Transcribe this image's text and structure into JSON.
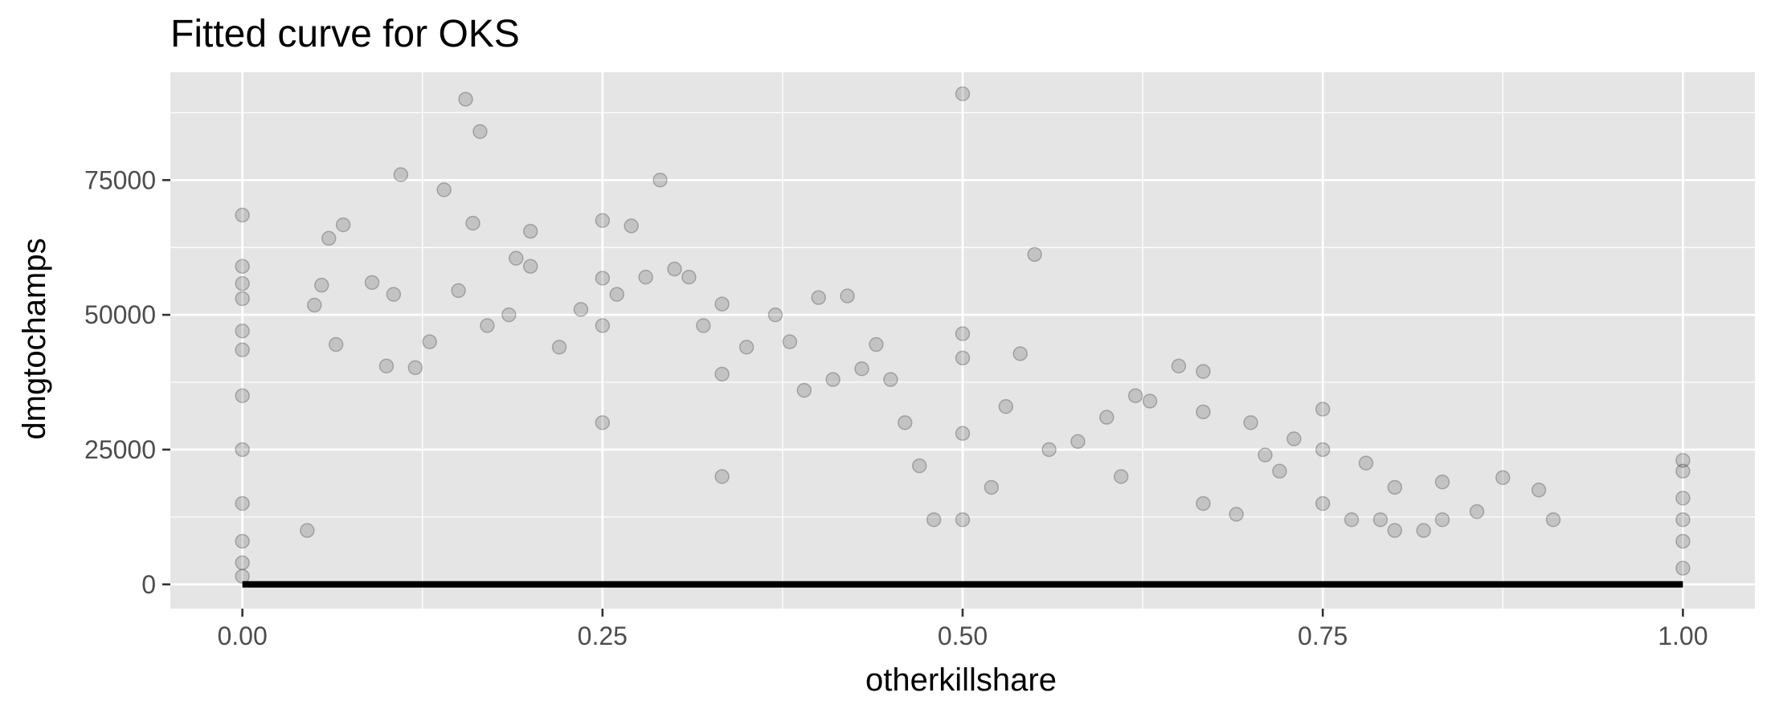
{
  "chart_data": {
    "type": "scatter",
    "title": "Fitted curve for OKS",
    "xlabel": "otherkillshare",
    "ylabel": "dmgtochamps",
    "xlim": [
      -0.05,
      1.05
    ],
    "ylim": [
      -4500,
      95000
    ],
    "xticks": [
      0.0,
      0.25,
      0.5,
      0.75,
      1.0
    ],
    "xtick_labels": [
      "0.00",
      "0.25",
      "0.50",
      "0.75",
      "1.00"
    ],
    "yticks": [
      0,
      25000,
      50000,
      75000
    ],
    "ytick_labels": [
      "0",
      "25000",
      "50000",
      "75000"
    ],
    "grid": true,
    "legend": "none",
    "colors": {
      "panel": "#e5e5e5",
      "grid": "#ffffff",
      "point": "#000000",
      "fitted_line": "#000000"
    },
    "point_alpha": 0.15,
    "fitted_line": {
      "x": [
        0.0,
        1.0
      ],
      "y": [
        0,
        0
      ]
    },
    "series": [
      {
        "x": [
          0.0,
          0.0,
          0.0,
          0.0,
          0.0,
          0.0,
          0.0,
          0.0,
          0.0,
          0.0,
          0.0,
          0.0,
          0.045,
          0.05,
          0.055,
          0.06,
          0.065,
          0.07,
          0.09,
          0.1,
          0.105,
          0.11,
          0.12,
          0.13,
          0.14,
          0.15,
          0.155,
          0.16,
          0.165,
          0.17,
          0.185,
          0.19,
          0.2,
          0.2,
          0.22,
          0.235,
          0.25,
          0.25,
          0.25,
          0.25,
          0.26,
          0.27,
          0.28,
          0.29,
          0.3,
          0.31,
          0.32,
          0.333,
          0.333,
          0.333,
          0.35,
          0.37,
          0.38,
          0.39,
          0.4,
          0.41,
          0.42,
          0.43,
          0.44,
          0.45,
          0.46,
          0.47,
          0.48,
          0.5,
          0.5,
          0.5,
          0.5,
          0.5,
          0.52,
          0.53,
          0.54,
          0.55,
          0.56,
          0.58,
          0.6,
          0.61,
          0.62,
          0.63,
          0.65,
          0.667,
          0.667,
          0.667,
          0.69,
          0.7,
          0.71,
          0.72,
          0.73,
          0.75,
          0.75,
          0.75,
          0.77,
          0.78,
          0.79,
          0.8,
          0.8,
          0.82,
          0.833,
          0.833,
          0.857,
          0.875,
          0.9,
          0.91,
          1.0,
          1.0,
          1.0,
          1.0,
          1.0,
          1.0
        ],
        "y": [
          68500,
          59000,
          55800,
          53000,
          47000,
          43500,
          35000,
          25000,
          15000,
          8000,
          4000,
          1500,
          10000,
          51800,
          55500,
          64200,
          44500,
          66700,
          56000,
          40500,
          53800,
          76000,
          40200,
          45000,
          73200,
          54500,
          90000,
          67000,
          84000,
          48000,
          50000,
          60500,
          65500,
          59000,
          44000,
          51000,
          67500,
          56800,
          48000,
          30000,
          53800,
          66500,
          57000,
          75000,
          58500,
          57000,
          48000,
          52000,
          39000,
          20000,
          44000,
          50000,
          45000,
          36000,
          53200,
          38000,
          53500,
          40000,
          44500,
          38000,
          30000,
          22000,
          12000,
          91000,
          46500,
          42000,
          28000,
          12000,
          18000,
          33000,
          42800,
          61200,
          25000,
          26500,
          31000,
          20000,
          35000,
          34000,
          40500,
          39500,
          32000,
          15000,
          13000,
          30000,
          24000,
          21000,
          27000,
          32500,
          25000,
          15000,
          12000,
          22500,
          12000,
          18000,
          10000,
          10000,
          19000,
          12000,
          13500,
          19800,
          17500,
          12000,
          23000,
          21000,
          16000,
          12000,
          8000,
          3000
        ]
      }
    ]
  }
}
